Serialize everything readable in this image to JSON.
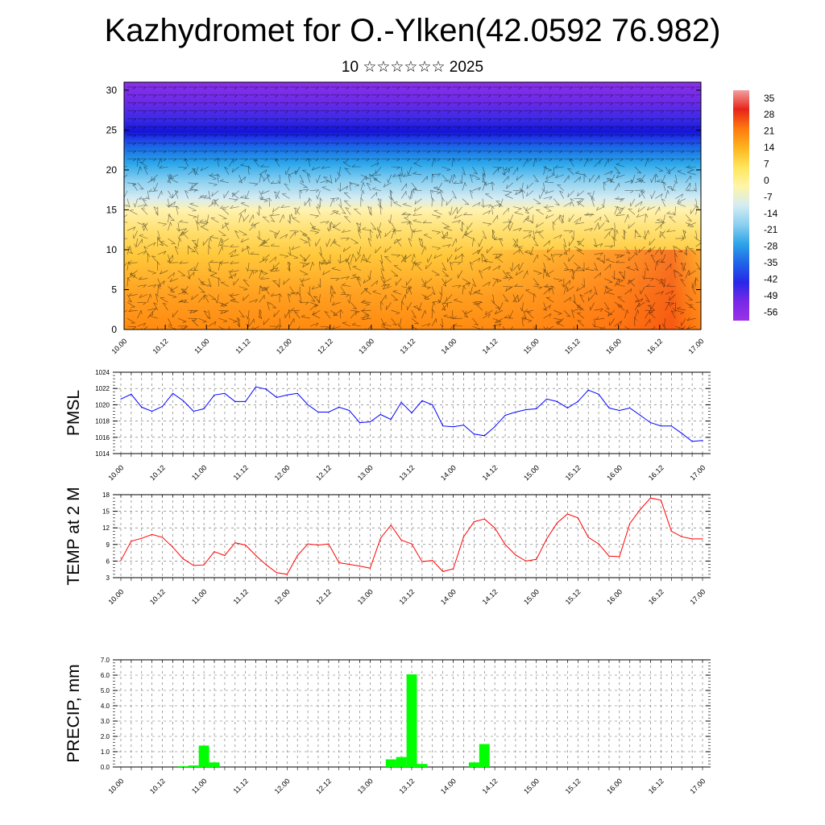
{
  "header": {
    "title": "Kazhydromet for O.-Ylken(42.0592 76.982)",
    "subtitle": "10 ☆☆☆☆☆☆ 2025"
  },
  "time_ticks": [
    "10.00",
    "10.12",
    "11.00",
    "11.12",
    "12.00",
    "12.12",
    "13.00",
    "13.12",
    "14.00",
    "14.12",
    "15.00",
    "15.12",
    "16.00",
    "16.12",
    "17.00"
  ],
  "chart_data": [
    {
      "type": "heatmap",
      "name": "vertical-section",
      "x_ticks": [
        "10.00",
        "10.12",
        "11.00",
        "11.12",
        "12.00",
        "12.12",
        "13.00",
        "13.12",
        "14.00",
        "14.12",
        "15.00",
        "15.12",
        "16.00",
        "16.12",
        "17.00"
      ],
      "y_ticks": [
        "0",
        "5",
        "10",
        "15",
        "20",
        "25",
        "30"
      ],
      "ylim": [
        0,
        31
      ],
      "colorbar": {
        "labels": [
          "35",
          "28",
          "21",
          "14",
          "7",
          "0",
          "-7",
          "-14",
          "-21",
          "-28",
          "-35",
          "-42",
          "-49",
          "-56"
        ],
        "range": [
          -60,
          38
        ],
        "colors": [
          "#f2a0a0",
          "#e8241a",
          "#ff7a10",
          "#ffb41e",
          "#ffe65a",
          "#fff5a8",
          "#d4ecf2",
          "#8cd0f0",
          "#2ca4e8",
          "#1f64e8",
          "#2828e8",
          "#7828e8",
          "#9a32e8"
        ]
      },
      "annotations": "wind barbs overlay"
    },
    {
      "type": "line",
      "name": "pmsl",
      "ylabel": "PMSL",
      "ylim": [
        1014,
        1024
      ],
      "y_ticks": [
        "1024",
        "1022",
        "1020",
        "1018",
        "1016",
        "1014"
      ],
      "x_ticks": [
        "10.00",
        "10.12",
        "11.00",
        "11.12",
        "12.00",
        "12.12",
        "13.00",
        "13.12",
        "14.00",
        "14.12",
        "15.00",
        "15.12",
        "16.00",
        "16.12",
        "17.00"
      ],
      "color": "#0000ff",
      "x": [
        0,
        3,
        6,
        9,
        12,
        15,
        18,
        21,
        24,
        27,
        30,
        33,
        36,
        39,
        42,
        45,
        48,
        51,
        54,
        57,
        60,
        63,
        66,
        69,
        72,
        75,
        78,
        81,
        84,
        87,
        90,
        93,
        96,
        99,
        102,
        105,
        108,
        111,
        114,
        117,
        120,
        123,
        126,
        129,
        132,
        135,
        138,
        141,
        144,
        147,
        150,
        153,
        156,
        159,
        162,
        165,
        168
      ],
      "values": [
        1020.7,
        1021.3,
        1019.7,
        1019.2,
        1019.8,
        1021.4,
        1020.5,
        1019.2,
        1019.5,
        1021.2,
        1021.4,
        1020.4,
        1020.4,
        1022.2,
        1021.9,
        1020.9,
        1021.2,
        1021.4,
        1020.0,
        1019.1,
        1019.1,
        1019.7,
        1019.3,
        1017.8,
        1017.9,
        1018.8,
        1018.2,
        1020.3,
        1019.0,
        1020.5,
        1020.0,
        1017.4,
        1017.3,
        1017.5,
        1016.4,
        1016.2,
        1017.3,
        1018.7,
        1019.1,
        1019.4,
        1019.5,
        1020.7,
        1020.4,
        1019.6,
        1020.4,
        1021.8,
        1021.3,
        1019.6,
        1019.3,
        1019.6,
        1018.7,
        1017.8,
        1017.4,
        1017.4,
        1016.5,
        1015.5,
        1015.6
      ]
    },
    {
      "type": "line",
      "name": "temp2m",
      "ylabel": "TEMP at 2 M",
      "ylim": [
        3,
        18
      ],
      "y_ticks": [
        "18",
        "15",
        "12",
        "9",
        "6",
        "3"
      ],
      "x_ticks": [
        "10.00",
        "10.12",
        "11.00",
        "11.12",
        "12.00",
        "12.12",
        "13.00",
        "13.12",
        "14.00",
        "14.12",
        "15.00",
        "15.12",
        "16.00",
        "16.12",
        "17.00"
      ],
      "color": "#ff0000",
      "x": [
        0,
        3,
        6,
        9,
        12,
        15,
        18,
        21,
        24,
        27,
        30,
        33,
        36,
        39,
        42,
        45,
        48,
        51,
        54,
        57,
        60,
        63,
        66,
        69,
        72,
        75,
        78,
        81,
        84,
        87,
        90,
        93,
        96,
        99,
        102,
        105,
        108,
        111,
        114,
        117,
        120,
        123,
        126,
        129,
        132,
        135,
        138,
        141,
        144,
        147,
        150,
        153,
        156,
        159,
        162,
        165,
        168
      ],
      "values": [
        6.1,
        9.6,
        10.1,
        10.8,
        10.3,
        8.5,
        6.4,
        5.2,
        5.3,
        7.7,
        7.0,
        9.3,
        8.9,
        7.0,
        5.3,
        3.9,
        3.6,
        7.0,
        9.1,
        8.9,
        9.1,
        5.7,
        5.4,
        5.1,
        4.7,
        10.1,
        12.5,
        9.8,
        9.1,
        5.9,
        6.1,
        4.1,
        4.6,
        10.4,
        13.1,
        13.6,
        12.0,
        9.0,
        7.1,
        6.0,
        6.3,
        10.0,
        12.9,
        14.5,
        13.8,
        10.3,
        9.1,
        6.9,
        6.8,
        12.8,
        15.3,
        17.4,
        17.0,
        11.4,
        10.4,
        10.0,
        10.0
      ]
    },
    {
      "type": "bar",
      "name": "precip",
      "ylabel": "PRECIP, mm",
      "ylim": [
        0,
        7
      ],
      "y_ticks": [
        "7.0",
        "6.0",
        "5.0",
        "4.0",
        "3.0",
        "2.0",
        "1.0",
        "0.0"
      ],
      "x_ticks": [
        "10.00",
        "10.12",
        "11.00",
        "11.12",
        "12.00",
        "12.12",
        "13.00",
        "13.12",
        "14.00",
        "14.12",
        "15.00",
        "15.12",
        "16.00",
        "16.12",
        "17.00"
      ],
      "color": "#00ff00",
      "x": [
        18,
        21,
        24,
        27,
        30,
        78,
        81,
        84,
        87,
        102,
        105
      ],
      "values": [
        0.05,
        0.1,
        1.4,
        0.3,
        0.0,
        0.5,
        0.65,
        6.05,
        0.2,
        0.3,
        1.5
      ]
    }
  ]
}
